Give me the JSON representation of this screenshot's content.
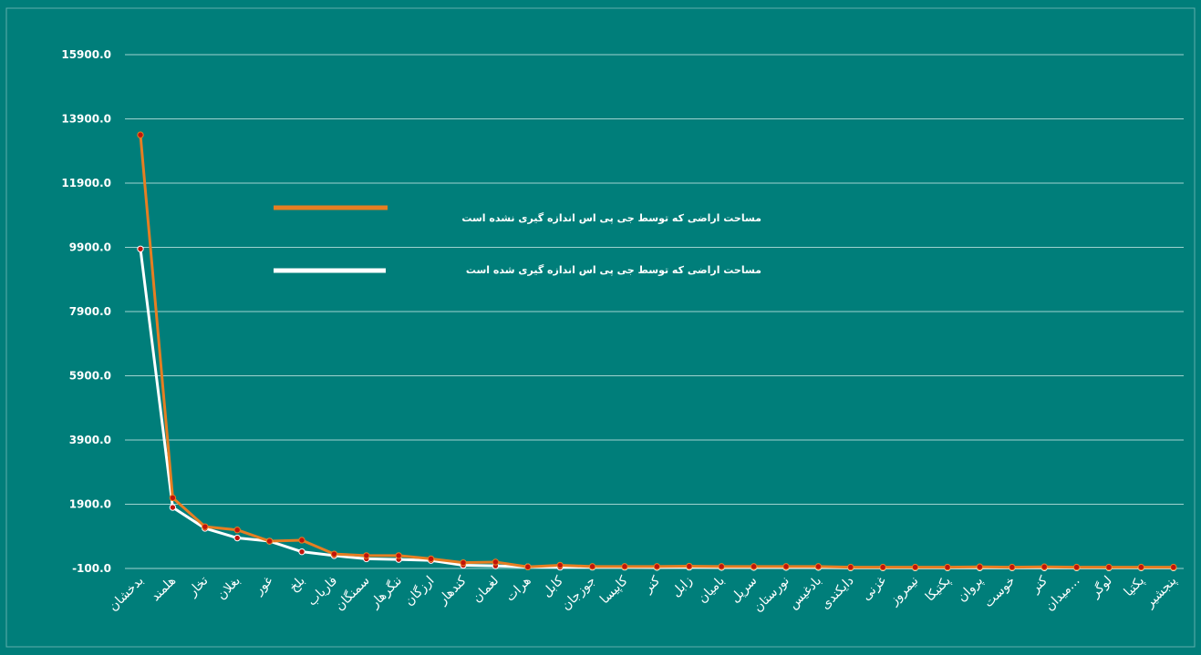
{
  "colors": {
    "background": "#007E7A",
    "frame_border": "#5FAFAC",
    "grid": "#9FD3D0",
    "series_not_measured": "#E67E22",
    "series_measured": "#FFFFFF",
    "marker_fill": "#C0140C",
    "text": "#FFFFFF"
  },
  "chart_data": {
    "type": "line",
    "title": "",
    "xlabel": "",
    "ylabel": "",
    "ylim": [
      -100,
      15900
    ],
    "y_ticks": [
      "-100.0",
      "1900.0",
      "3900.0",
      "5900.0",
      "7900.0",
      "9900.0",
      "11900.0",
      "13900.0",
      "15900.0"
    ],
    "y_tick_values": [
      -100,
      1900,
      3900,
      5900,
      7900,
      9900,
      11900,
      13900,
      15900
    ],
    "grid": true,
    "legend_position": "top-center",
    "categories": [
      "بدخشان",
      "هلمند",
      "تخار",
      "بغلان",
      "غور",
      "بلخ",
      "فاریاب",
      "سمنگان",
      "ننگرهار",
      "ارزگان",
      "کندهار",
      "لغمان",
      "هرات",
      "کابل",
      "جوزجان",
      "کاپیسا",
      "کنر",
      "زابل",
      "بامیان",
      "سرپل",
      "نورستان",
      "بادغیس",
      "دایکندی",
      "غزنی",
      "نیمروز",
      "پکتیکا",
      "پروان",
      "خوست",
      "کنر",
      "میدان...",
      "لوگر",
      "پکتیا",
      "پنجشیر"
    ],
    "series": [
      {
        "name": "مساحت اراضی که توسط جی پی اس اندازه گیری نشده است",
        "values": [
          13400,
          2100,
          1200,
          1100,
          750,
          780,
          350,
          300,
          300,
          200,
          80,
          100,
          -50,
          0,
          -40,
          -40,
          -40,
          -30,
          -40,
          -40,
          -40,
          -40,
          -60,
          -60,
          -60,
          -60,
          -50,
          -60,
          -50,
          -60,
          -60,
          -60,
          -60
        ]
      },
      {
        "name": "مساحت اراضی که توسط جی پی اس اندازه گیری شده است",
        "values": [
          9850,
          1800,
          1150,
          850,
          750,
          420,
          300,
          200,
          180,
          150,
          0,
          -20,
          -50,
          -60,
          -60,
          -60,
          -70,
          -60,
          -70,
          -70,
          -70,
          -70,
          -80,
          -80,
          -80,
          -80,
          -80,
          -80,
          -80,
          -80,
          -80,
          -80,
          -80
        ]
      }
    ]
  }
}
